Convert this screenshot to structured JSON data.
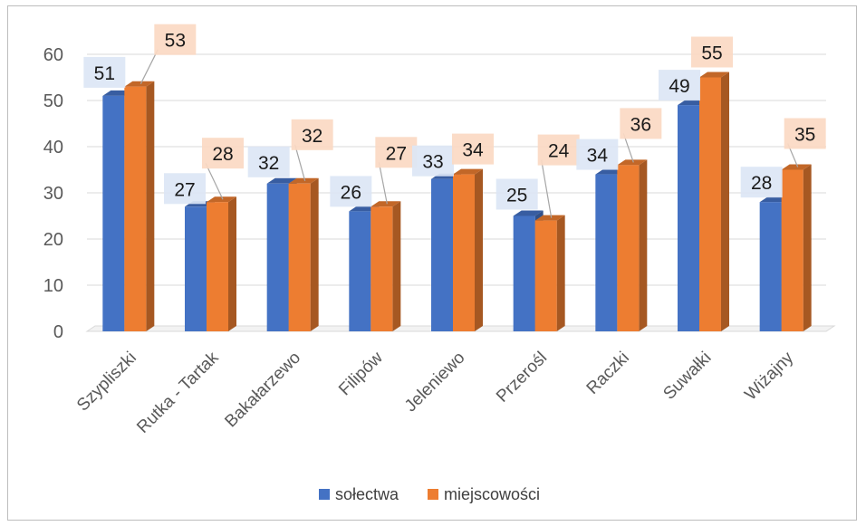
{
  "chart_data": {
    "type": "bar",
    "categories": [
      "Szypliszki",
      "Rutka - Tartak",
      "Bakałarzewo",
      "Filipów",
      "Jeleniewo",
      "Przerośl",
      "Raczki",
      "Suwałki",
      "Wiżajny"
    ],
    "series": [
      {
        "name": "sołectwa",
        "values": [
          51,
          27,
          32,
          26,
          33,
          25,
          34,
          49,
          28
        ],
        "color": "#4472c4",
        "label_color": "#dce6f5"
      },
      {
        "name": "miejscowości",
        "values": [
          53,
          28,
          32,
          27,
          34,
          24,
          36,
          55,
          35
        ],
        "color": "#ed7d31",
        "label_color": "#fbd9c3"
      }
    ],
    "y_ticks": [
      "0",
      "10",
      "20",
      "30",
      "40",
      "50",
      "60"
    ],
    "ylim": [
      0,
      60
    ],
    "grid": true,
    "legend": "bottom",
    "bar_3d": true
  }
}
